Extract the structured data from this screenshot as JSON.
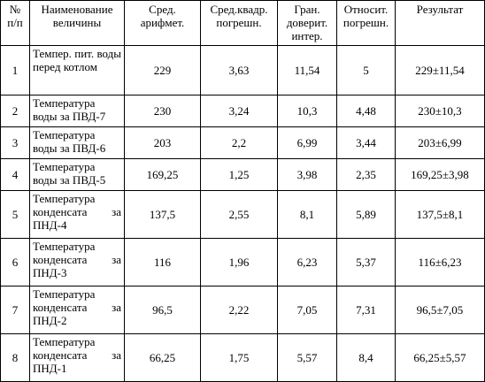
{
  "table": {
    "header": [
      "№ п/п",
      "Наименование величины",
      "Сред. арифмет.",
      "Сред.квадр. погрешн.",
      "Гран. доверит. интер.",
      "Относит. погрешн.",
      "Результат"
    ],
    "rows": [
      [
        "1",
        "Темпер. пит. воды перед котлом",
        "229",
        "3,63",
        "11,54",
        "5",
        "229±11,54"
      ],
      [
        "2",
        "Температура воды за ПВД-7",
        "230",
        "3,24",
        "10,3",
        "4,48",
        "230±10,3"
      ],
      [
        "3",
        "Температура воды за ПВД-6",
        "203",
        "2,2",
        "6,99",
        "3,44",
        "203±6,99"
      ],
      [
        "4",
        "Температура воды за ПВД-5",
        "169,25",
        "1,25",
        "3,98",
        "2,35",
        "169,25±3,98"
      ],
      [
        "5",
        "Температура конденсата за ПНД-4",
        "137,5",
        "2,55",
        "8,1",
        "5,89",
        "137,5±8,1"
      ],
      [
        "6",
        "Температура конденсата за ПНД-3",
        "116",
        "1,96",
        "6,23",
        "5,37",
        "116±6,23"
      ],
      [
        "7",
        "Температура конденсата за ПНД-2",
        "96,5",
        "2,22",
        "7,05",
        "7,31",
        "96,5±7,05"
      ],
      [
        "8",
        "Температура конденсата за ПНД-1",
        "66,25",
        "1,75",
        "5,57",
        "8,4",
        "66,25±5,57"
      ]
    ]
  }
}
